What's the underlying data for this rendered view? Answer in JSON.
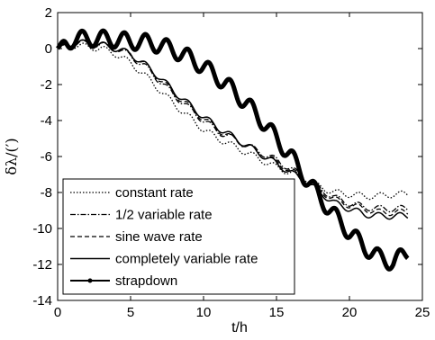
{
  "chart_data": {
    "type": "line",
    "xlabel": "t/h",
    "ylabel": "δλ/(′)",
    "xlim": [
      0,
      25
    ],
    "ylim": [
      -14,
      2
    ],
    "x_ticks": [
      "0",
      "5",
      "10",
      "15",
      "20",
      "25"
    ],
    "y_ticks": [
      "2",
      "0",
      "-2",
      "-4",
      "-6",
      "-8",
      "-10",
      "-12",
      "-14"
    ],
    "grid": false,
    "legend_position": "lower-left",
    "series": [
      {
        "name": "constant rate",
        "line_style": "dotted",
        "color": "#000000",
        "x": [
          0,
          1,
          2,
          3,
          4,
          5,
          6,
          7,
          8,
          9,
          10,
          11,
          12,
          13,
          14,
          15,
          16,
          17,
          18,
          19,
          20,
          21,
          22,
          23,
          24
        ],
        "y": [
          0.0,
          0.2,
          0.1,
          0.0,
          -0.3,
          -0.8,
          -1.5,
          -2.3,
          -3.1,
          -3.8,
          -4.5,
          -5.0,
          -5.4,
          -5.8,
          -6.2,
          -6.6,
          -6.9,
          -7.3,
          -7.7,
          -8.0,
          -8.1,
          -8.2,
          -8.2,
          -8.1,
          -8.1
        ]
      },
      {
        "name": "1/2 variable rate",
        "line_style": "dashdot",
        "color": "#000000",
        "x": [
          0,
          1,
          2,
          3,
          4,
          5,
          6,
          7,
          8,
          9,
          10,
          11,
          12,
          13,
          14,
          15,
          16,
          17,
          18,
          19,
          20,
          21,
          22,
          23,
          24
        ],
        "y": [
          0.0,
          0.3,
          0.3,
          0.2,
          0.0,
          -0.4,
          -1.0,
          -1.8,
          -2.6,
          -3.3,
          -4.0,
          -4.6,
          -5.0,
          -5.4,
          -5.8,
          -6.2,
          -6.7,
          -7.2,
          -7.8,
          -8.3,
          -8.6,
          -8.8,
          -8.9,
          -8.9,
          -8.9
        ]
      },
      {
        "name": "sine wave rate",
        "line_style": "dashed",
        "color": "#000000",
        "x": [
          0,
          1,
          2,
          3,
          4,
          5,
          6,
          7,
          8,
          9,
          10,
          11,
          12,
          13,
          14,
          15,
          16,
          17,
          18,
          19,
          20,
          21,
          22,
          23,
          24
        ],
        "y": [
          0.0,
          0.3,
          0.3,
          0.2,
          0.0,
          -0.3,
          -0.9,
          -1.7,
          -2.5,
          -3.2,
          -3.9,
          -4.5,
          -5.0,
          -5.4,
          -5.9,
          -6.3,
          -6.8,
          -7.3,
          -7.9,
          -8.4,
          -8.7,
          -8.9,
          -9.1,
          -9.1,
          -9.1
        ]
      },
      {
        "name": "completely variable rate",
        "line_style": "solid",
        "color": "#000000",
        "x": [
          0,
          1,
          2,
          3,
          4,
          5,
          6,
          7,
          8,
          9,
          10,
          11,
          12,
          13,
          14,
          15,
          16,
          17,
          18,
          19,
          20,
          21,
          22,
          23,
          24
        ],
        "y": [
          0.0,
          0.3,
          0.3,
          0.2,
          0.0,
          -0.3,
          -0.9,
          -1.6,
          -2.4,
          -3.1,
          -3.8,
          -4.4,
          -4.9,
          -5.4,
          -5.9,
          -6.4,
          -6.9,
          -7.4,
          -8.0,
          -8.6,
          -8.9,
          -9.2,
          -9.3,
          -9.3,
          -9.3
        ]
      },
      {
        "name": "strapdown",
        "line_style": "thick-solid-dot",
        "color": "#000000",
        "x": [
          0,
          1,
          2,
          3,
          4,
          5,
          6,
          7,
          8,
          9,
          10,
          11,
          12,
          13,
          14,
          15,
          16,
          17,
          18,
          19,
          20,
          21,
          22,
          23,
          24
        ],
        "y": [
          0.0,
          0.5,
          0.55,
          0.55,
          0.5,
          0.4,
          0.35,
          0.2,
          -0.1,
          -0.5,
          -1.0,
          -1.6,
          -2.3,
          -3.1,
          -4.0,
          -5.0,
          -6.0,
          -7.2,
          -8.3,
          -9.3,
          -10.2,
          -11.0,
          -11.6,
          -11.9,
          -11.3
        ]
      }
    ]
  }
}
